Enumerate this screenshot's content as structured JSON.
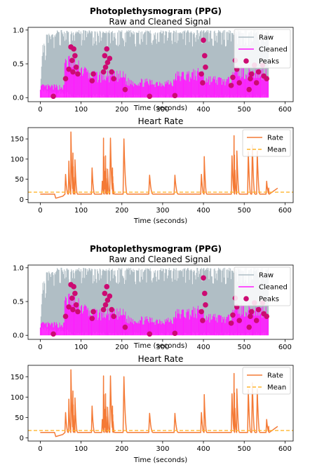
{
  "figures": [
    {
      "suptitle": "Photoplethysmogram (PPG)",
      "panels": [
        {
          "title": "Raw and Cleaned Signal",
          "xlabel": "Time (seconds)",
          "legend": [
            {
              "label": "Raw",
              "kind": "line",
              "color": "#b0bec5"
            },
            {
              "label": "Cleaned",
              "kind": "line",
              "color": "#ff1aff"
            },
            {
              "label": "Peaks",
              "kind": "dot",
              "color": "#cc0a72"
            }
          ]
        },
        {
          "title": "Heart Rate",
          "xlabel": "Time (seconds)",
          "legend": [
            {
              "label": "Rate",
              "kind": "line",
              "color": "#f47a36"
            },
            {
              "label": "Mean",
              "kind": "dash",
              "color": "#ffb52e"
            }
          ]
        }
      ]
    },
    {
      "suptitle": "Photoplethysmogram (PPG)",
      "panels": [
        {
          "title": "Raw and Cleaned Signal",
          "xlabel": "Time (seconds)",
          "legend": [
            {
              "label": "Raw",
              "kind": "line",
              "color": "#b0bec5"
            },
            {
              "label": "Cleaned",
              "kind": "line",
              "color": "#ff1aff"
            },
            {
              "label": "Peaks",
              "kind": "dot",
              "color": "#cc0a72"
            }
          ]
        },
        {
          "title": "Heart Rate",
          "xlabel": "Time (seconds)",
          "legend": [
            {
              "label": "Rate",
              "kind": "line",
              "color": "#f47a36"
            },
            {
              "label": "Mean",
              "kind": "dash",
              "color": "#ffb52e"
            }
          ]
        }
      ]
    }
  ],
  "chart_data": [
    {
      "type": "line",
      "title": "Raw and Cleaned Signal",
      "xlabel": "Time (seconds)",
      "ylabel": "",
      "xlim": [
        -30,
        620
      ],
      "ylim": [
        -0.06,
        1.04
      ],
      "xticks": [
        0,
        100,
        200,
        300,
        400,
        500,
        600
      ],
      "yticks": [
        0.0,
        0.5,
        1.0
      ],
      "ytick_labels": [
        "0.0",
        "0.5",
        "1.0"
      ],
      "legend_position": "top-right",
      "series": [
        {
          "name": "Raw",
          "color": "#b0bec5",
          "segments": [
            {
              "x": [
                0,
                5,
                8,
                15
              ],
              "bottom": 0.08,
              "top": [
                0.12,
                0.8,
                0.85,
                0.75
              ]
            },
            {
              "x": [
                15,
                40
              ],
              "bottom": 0.05,
              "top": [
                0.95,
                0.95
              ]
            },
            {
              "x": [
                40,
                70
              ],
              "bottom": 0.05,
              "top": [
                1.0,
                1.0
              ]
            },
            {
              "x": [
                70,
                560
              ],
              "bottom": 0.0,
              "top": [
                1.0,
                1.0
              ]
            }
          ]
        },
        {
          "name": "Cleaned",
          "color": "#ff1aff",
          "segments": [
            {
              "x": [
                0,
                60
              ],
              "bottom": 0.0,
              "top": [
                0.2,
                0.2
              ]
            },
            {
              "x": [
                60,
                120
              ],
              "bottom": 0.0,
              "top": [
                0.7,
                0.45
              ]
            },
            {
              "x": [
                120,
                210
              ],
              "bottom": 0.0,
              "top": [
                0.4,
                0.4
              ]
            },
            {
              "x": [
                210,
                270
              ],
              "bottom": 0.0,
              "top": [
                0.3,
                0.28
              ]
            },
            {
              "x": [
                270,
                330
              ],
              "bottom": 0.0,
              "top": [
                0.28,
                0.28
              ]
            },
            {
              "x": [
                330,
                400
              ],
              "bottom": 0.0,
              "top": [
                0.4,
                0.45
              ]
            },
            {
              "x": [
                400,
                470
              ],
              "bottom": 0.0,
              "top": [
                0.35,
                0.3
              ]
            },
            {
              "x": [
                470,
                560
              ],
              "bottom": 0.0,
              "top": [
                0.5,
                0.45
              ]
            }
          ]
        },
        {
          "name": "Peaks",
          "color": "#cc0a72",
          "x": [
            32,
            62,
            70,
            75,
            78,
            80,
            82,
            85,
            88,
            92,
            127,
            130,
            155,
            158,
            160,
            163,
            165,
            170,
            175,
            180,
            208,
            268,
            330,
            395,
            398,
            400,
            403,
            405,
            468,
            472,
            478,
            482,
            488,
            512,
            515,
            518,
            525,
            530,
            535,
            545,
            548,
            555
          ],
          "y": [
            0.02,
            0.28,
            0.42,
            0.75,
            0.55,
            0.38,
            0.72,
            0.62,
            0.45,
            0.35,
            0.25,
            0.35,
            0.38,
            0.62,
            0.45,
            0.72,
            0.52,
            0.58,
            0.38,
            0.28,
            0.12,
            0.02,
            0.03,
            0.35,
            0.22,
            0.85,
            0.62,
            0.45,
            0.18,
            0.3,
            0.55,
            0.42,
            0.22,
            0.12,
            0.28,
            0.35,
            0.48,
            0.22,
            0.38,
            0.48,
            0.32,
            0.28
          ]
        }
      ]
    },
    {
      "type": "line",
      "title": "Heart Rate",
      "xlabel": "Time (seconds)",
      "ylabel": "",
      "xlim": [
        -30,
        620
      ],
      "ylim": [
        -8,
        178
      ],
      "xticks": [
        0,
        100,
        200,
        300,
        400,
        500,
        600
      ],
      "yticks": [
        0,
        50,
        100,
        150
      ],
      "legend_position": "top-right",
      "series": [
        {
          "name": "Rate",
          "color": "#f47a36",
          "baseline": 13,
          "spikes": [
            {
              "x": 62,
              "y": 62,
              "w": 4
            },
            {
              "x": 70,
              "y": 95,
              "w": 3
            },
            {
              "x": 75,
              "y": 167,
              "w": 4
            },
            {
              "x": 80,
              "y": 115,
              "w": 3
            },
            {
              "x": 85,
              "y": 98,
              "w": 4
            },
            {
              "x": 127,
              "y": 78,
              "w": 4
            },
            {
              "x": 152,
              "y": 45,
              "w": 3
            },
            {
              "x": 155,
              "y": 152,
              "w": 4
            },
            {
              "x": 160,
              "y": 108,
              "w": 3
            },
            {
              "x": 165,
              "y": 75,
              "w": 3
            },
            {
              "x": 172,
              "y": 152,
              "w": 4
            },
            {
              "x": 177,
              "y": 78,
              "w": 3
            },
            {
              "x": 205,
              "y": 150,
              "w": 5
            },
            {
              "x": 268,
              "y": 60,
              "w": 5
            },
            {
              "x": 330,
              "y": 60,
              "w": 5
            },
            {
              "x": 395,
              "y": 62,
              "w": 4
            },
            {
              "x": 402,
              "y": 106,
              "w": 4
            },
            {
              "x": 470,
              "y": 108,
              "w": 4
            },
            {
              "x": 475,
              "y": 158,
              "w": 4
            },
            {
              "x": 482,
              "y": 120,
              "w": 4
            },
            {
              "x": 510,
              "y": 118,
              "w": 4
            },
            {
              "x": 520,
              "y": 135,
              "w": 4
            },
            {
              "x": 532,
              "y": 120,
              "w": 4
            },
            {
              "x": 555,
              "y": 45,
              "w": 4
            }
          ],
          "tail": {
            "x": [
              560,
              582
            ],
            "y": 28
          }
        },
        {
          "name": "Mean",
          "color": "#ffb52e",
          "value": 18
        }
      ]
    },
    {
      "type": "line",
      "title": "Raw and Cleaned Signal",
      "xlabel": "Time (seconds)",
      "ylabel": "",
      "xlim": [
        -30,
        620
      ],
      "ylim": [
        -0.06,
        1.04
      ],
      "xticks": [
        0,
        100,
        200,
        300,
        400,
        500,
        600
      ],
      "yticks": [
        0.0,
        0.5,
        1.0
      ],
      "ytick_labels": [
        "0.0",
        "0.5",
        "1.0"
      ],
      "legend_position": "top-right",
      "series": [
        {
          "name": "Raw",
          "color": "#b0bec5",
          "segments": [
            {
              "x": [
                0,
                5,
                8,
                15
              ],
              "bottom": 0.08,
              "top": [
                0.12,
                0.8,
                0.85,
                0.75
              ]
            },
            {
              "x": [
                15,
                40
              ],
              "bottom": 0.05,
              "top": [
                0.95,
                0.95
              ]
            },
            {
              "x": [
                40,
                70
              ],
              "bottom": 0.05,
              "top": [
                1.0,
                1.0
              ]
            },
            {
              "x": [
                70,
                560
              ],
              "bottom": 0.0,
              "top": [
                1.0,
                1.0
              ]
            }
          ]
        },
        {
          "name": "Cleaned",
          "color": "#ff1aff",
          "segments": [
            {
              "x": [
                0,
                60
              ],
              "bottom": 0.0,
              "top": [
                0.2,
                0.2
              ]
            },
            {
              "x": [
                60,
                120
              ],
              "bottom": 0.0,
              "top": [
                0.7,
                0.45
              ]
            },
            {
              "x": [
                120,
                210
              ],
              "bottom": 0.0,
              "top": [
                0.4,
                0.4
              ]
            },
            {
              "x": [
                210,
                270
              ],
              "bottom": 0.0,
              "top": [
                0.3,
                0.28
              ]
            },
            {
              "x": [
                270,
                330
              ],
              "bottom": 0.0,
              "top": [
                0.28,
                0.28
              ]
            },
            {
              "x": [
                330,
                400
              ],
              "bottom": 0.0,
              "top": [
                0.4,
                0.45
              ]
            },
            {
              "x": [
                400,
                470
              ],
              "bottom": 0.0,
              "top": [
                0.35,
                0.3
              ]
            },
            {
              "x": [
                470,
                560
              ],
              "bottom": 0.0,
              "top": [
                0.5,
                0.45
              ]
            }
          ]
        },
        {
          "name": "Peaks",
          "color": "#cc0a72",
          "x": [
            32,
            62,
            70,
            75,
            78,
            80,
            82,
            85,
            88,
            92,
            127,
            130,
            155,
            158,
            160,
            163,
            165,
            170,
            175,
            180,
            208,
            268,
            330,
            395,
            398,
            400,
            403,
            405,
            468,
            472,
            478,
            482,
            488,
            512,
            515,
            518,
            525,
            530,
            535,
            545,
            548,
            555
          ],
          "y": [
            0.02,
            0.28,
            0.42,
            0.75,
            0.55,
            0.38,
            0.72,
            0.62,
            0.45,
            0.35,
            0.25,
            0.35,
            0.38,
            0.62,
            0.45,
            0.72,
            0.52,
            0.58,
            0.38,
            0.28,
            0.12,
            0.02,
            0.03,
            0.35,
            0.22,
            0.85,
            0.62,
            0.45,
            0.18,
            0.3,
            0.55,
            0.42,
            0.22,
            0.12,
            0.28,
            0.35,
            0.48,
            0.22,
            0.38,
            0.48,
            0.32,
            0.28
          ]
        }
      ]
    },
    {
      "type": "line",
      "title": "Heart Rate",
      "xlabel": "Time (seconds)",
      "ylabel": "",
      "xlim": [
        -30,
        620
      ],
      "ylim": [
        -8,
        178
      ],
      "xticks": [
        0,
        100,
        200,
        300,
        400,
        500,
        600
      ],
      "yticks": [
        0,
        50,
        100,
        150
      ],
      "legend_position": "top-right",
      "series": [
        {
          "name": "Rate",
          "color": "#f47a36",
          "baseline": 13,
          "spikes": [
            {
              "x": 62,
              "y": 62,
              "w": 4
            },
            {
              "x": 70,
              "y": 95,
              "w": 3
            },
            {
              "x": 75,
              "y": 167,
              "w": 4
            },
            {
              "x": 80,
              "y": 115,
              "w": 3
            },
            {
              "x": 85,
              "y": 98,
              "w": 4
            },
            {
              "x": 127,
              "y": 78,
              "w": 4
            },
            {
              "x": 152,
              "y": 45,
              "w": 3
            },
            {
              "x": 155,
              "y": 152,
              "w": 4
            },
            {
              "x": 160,
              "y": 108,
              "w": 3
            },
            {
              "x": 165,
              "y": 75,
              "w": 3
            },
            {
              "x": 172,
              "y": 152,
              "w": 4
            },
            {
              "x": 177,
              "y": 78,
              "w": 3
            },
            {
              "x": 205,
              "y": 150,
              "w": 5
            },
            {
              "x": 268,
              "y": 60,
              "w": 5
            },
            {
              "x": 330,
              "y": 60,
              "w": 5
            },
            {
              "x": 395,
              "y": 62,
              "w": 4
            },
            {
              "x": 402,
              "y": 106,
              "w": 4
            },
            {
              "x": 470,
              "y": 108,
              "w": 4
            },
            {
              "x": 475,
              "y": 158,
              "w": 4
            },
            {
              "x": 482,
              "y": 120,
              "w": 4
            },
            {
              "x": 510,
              "y": 118,
              "w": 4
            },
            {
              "x": 520,
              "y": 135,
              "w": 4
            },
            {
              "x": 532,
              "y": 120,
              "w": 4
            },
            {
              "x": 555,
              "y": 45,
              "w": 4
            }
          ],
          "tail": {
            "x": [
              560,
              582
            ],
            "y": 28
          }
        },
        {
          "name": "Mean",
          "color": "#ffb52e",
          "value": 18
        }
      ]
    }
  ]
}
